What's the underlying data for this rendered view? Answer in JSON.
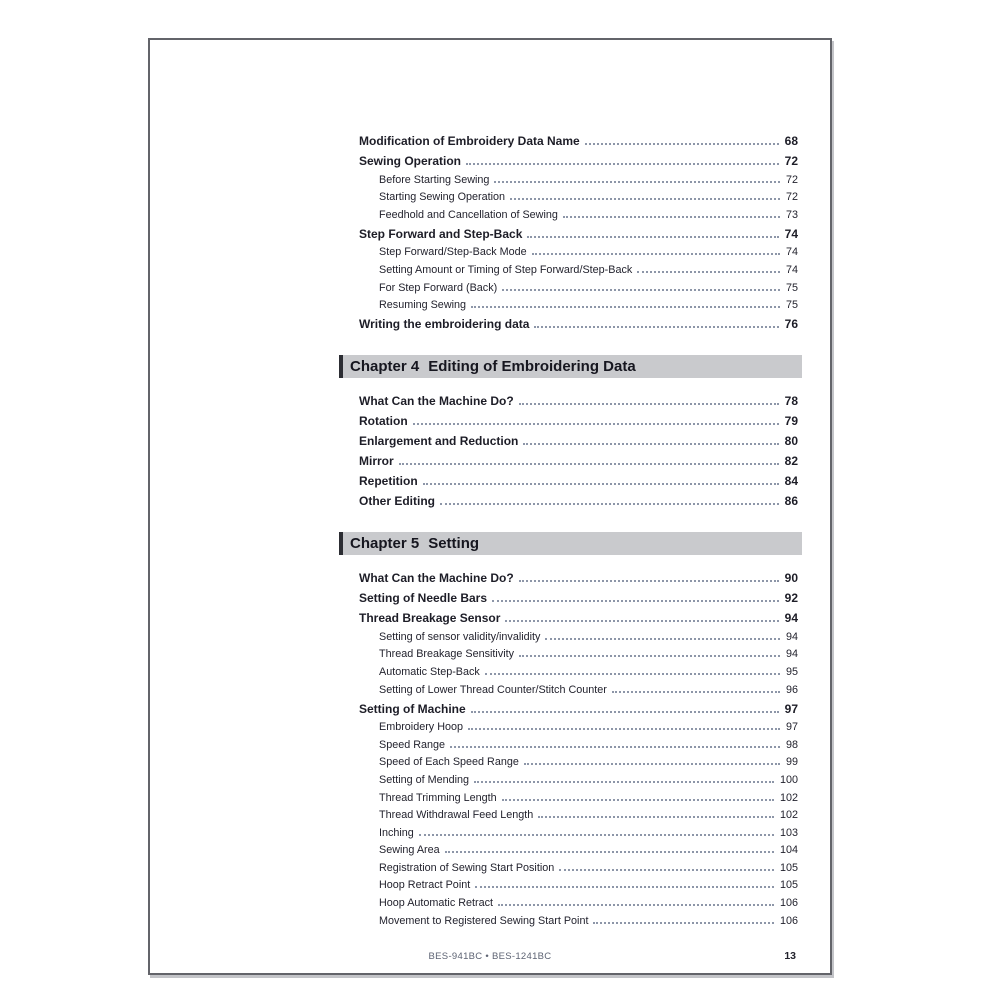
{
  "footer": {
    "model": "BES-941BC • BES-1241BC",
    "page_number": "13"
  },
  "toc": {
    "sections": [
      {
        "entries": [
          {
            "level": 1,
            "label": "Modification of Embroidery Data Name",
            "page": "68"
          },
          {
            "level": 1,
            "label": "Sewing Operation",
            "page": "72"
          },
          {
            "level": 2,
            "label": "Before Starting Sewing",
            "page": "72"
          },
          {
            "level": 2,
            "label": "Starting Sewing Operation",
            "page": "72"
          },
          {
            "level": 2,
            "label": "Feedhold and Cancellation of Sewing",
            "page": "73"
          },
          {
            "level": 1,
            "label": "Step Forward and Step-Back",
            "page": "74"
          },
          {
            "level": 2,
            "label": "Step Forward/Step-Back Mode",
            "page": "74"
          },
          {
            "level": 2,
            "label": "Setting Amount or Timing of Step Forward/Step-Back",
            "page": "74"
          },
          {
            "level": 2,
            "label": "For Step Forward (Back)",
            "page": "75"
          },
          {
            "level": 2,
            "label": "Resuming Sewing",
            "page": "75"
          },
          {
            "level": 1,
            "label": "Writing the embroidering data",
            "page": "76"
          }
        ]
      },
      {
        "number": "Chapter 4",
        "title": "Editing of Embroidering Data",
        "entries": [
          {
            "level": 1,
            "label": "What Can the Machine Do?",
            "page": "78"
          },
          {
            "level": 1,
            "label": "Rotation",
            "page": "79"
          },
          {
            "level": 1,
            "label": "Enlargement and Reduction",
            "page": "80"
          },
          {
            "level": 1,
            "label": "Mirror",
            "page": "82"
          },
          {
            "level": 1,
            "label": "Repetition",
            "page": "84"
          },
          {
            "level": 1,
            "label": "Other Editing",
            "page": "86"
          }
        ]
      },
      {
        "number": "Chapter 5",
        "title": "Setting",
        "entries": [
          {
            "level": 1,
            "label": "What Can the Machine Do?",
            "page": "90"
          },
          {
            "level": 1,
            "label": "Setting of Needle Bars",
            "page": "92"
          },
          {
            "level": 1,
            "label": "Thread Breakage Sensor",
            "page": "94"
          },
          {
            "level": 2,
            "label": "Setting of sensor validity/invalidity",
            "page": "94"
          },
          {
            "level": 2,
            "label": "Thread Breakage Sensitivity",
            "page": "94"
          },
          {
            "level": 2,
            "label": "Automatic Step-Back",
            "page": "95"
          },
          {
            "level": 2,
            "label": "Setting of Lower Thread Counter/Stitch Counter",
            "page": "96"
          },
          {
            "level": 1,
            "label": "Setting of Machine",
            "page": "97"
          },
          {
            "level": 2,
            "label": "Embroidery Hoop",
            "page": "97"
          },
          {
            "level": 2,
            "label": "Speed Range",
            "page": "98"
          },
          {
            "level": 2,
            "label": "Speed of Each Speed Range",
            "page": "99"
          },
          {
            "level": 2,
            "label": "Setting of Mending",
            "page": "100"
          },
          {
            "level": 2,
            "label": "Thread Trimming Length",
            "page": "102"
          },
          {
            "level": 2,
            "label": "Thread Withdrawal Feed Length",
            "page": "102"
          },
          {
            "level": 2,
            "label": "Inching",
            "page": "103"
          },
          {
            "level": 2,
            "label": "Sewing Area",
            "page": "104"
          },
          {
            "level": 2,
            "label": "Registration of Sewing Start Position",
            "page": "105"
          },
          {
            "level": 2,
            "label": "Hoop Retract Point",
            "page": "105"
          },
          {
            "level": 2,
            "label": "Hoop Automatic Retract",
            "page": "106"
          },
          {
            "level": 2,
            "label": "Movement to Registered Sewing Start Point",
            "page": "106"
          }
        ]
      }
    ]
  }
}
